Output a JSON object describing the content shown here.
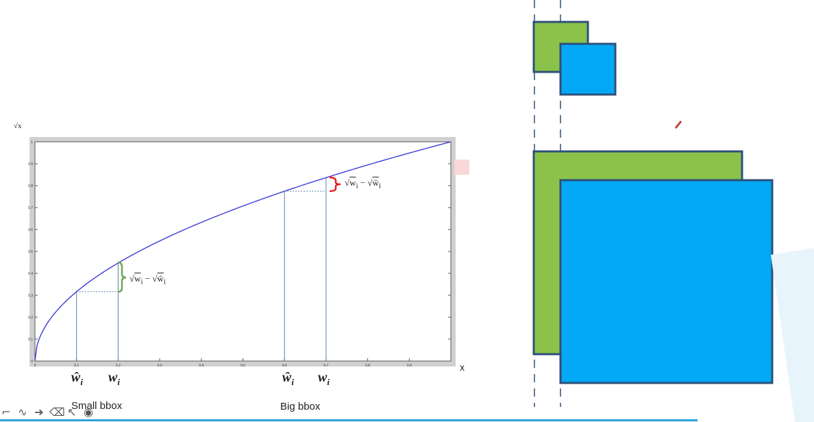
{
  "chart_data": {
    "type": "line",
    "function": "sqrt",
    "ylabel": "√x",
    "xlabel": "x",
    "xlim": [
      0,
      1
    ],
    "ylim": [
      0,
      1
    ],
    "x_ticks": [
      "0",
      "0.1",
      "0.2",
      "0.3",
      "0.4",
      "0.5",
      "0.6",
      "0.7",
      "0.8",
      "0.9"
    ],
    "y_ticks": [
      "0",
      "0.1",
      "0.2",
      "0.3",
      "0.4",
      "0.5",
      "0.6",
      "0.7",
      "0.8",
      "0.9",
      "1"
    ],
    "series": [
      {
        "x": [
          0,
          0.01,
          0.02,
          0.05,
          0.1,
          0.2,
          0.3,
          0.4,
          0.5,
          0.6,
          0.7,
          0.8,
          0.9,
          1.0
        ],
        "y": [
          0,
          0.1,
          0.141,
          0.224,
          0.316,
          0.447,
          0.548,
          0.632,
          0.707,
          0.775,
          0.837,
          0.894,
          0.949,
          1.0
        ],
        "color": "#3b3bd6"
      }
    ],
    "annotations": [
      {
        "w_hat": 0.1,
        "w": 0.2,
        "formula": "√w_i − √ŵ_i",
        "bracket_color": "#6aa84f"
      },
      {
        "w_hat": 0.6,
        "w": 0.7,
        "formula": "√w_i − √ŵ_i",
        "bracket_color": "#e02020"
      }
    ]
  },
  "labels": {
    "w_hat_1": "ŵ",
    "w_1": "w",
    "w_hat_2": "ŵ",
    "w_2": "w",
    "sub_i": "i",
    "small_caption": "Small bbox",
    "big_caption": "Big bbox",
    "formula_sqrt_w": "w",
    "formula_sqrt_w_hat": "ŵ",
    "formula_minus": "−"
  },
  "colors": {
    "ground_truth_box": "#8bc34a",
    "predicted_box": "#03a9f4",
    "box_border": "#2e4f7a"
  },
  "toolbar": {
    "icons": [
      "pen-icon",
      "curve-icon",
      "arrow-icon",
      "eraser-icon",
      "pointer-icon",
      "record-icon"
    ],
    "glyphs": [
      "⌐",
      "∿",
      "➔",
      "⌫",
      "↖",
      "◉"
    ]
  }
}
